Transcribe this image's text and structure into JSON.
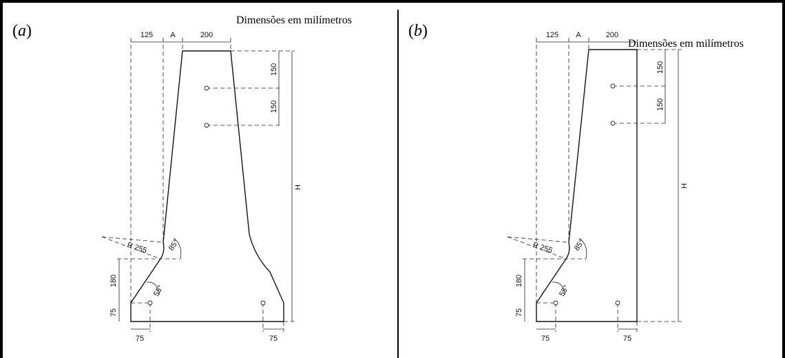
{
  "note": "Dimensões em milímetros",
  "panels": [
    {
      "label_open": "(",
      "label_letter": "a",
      "label_close": ")",
      "dims": {
        "top_left": "125",
        "top_a": "A",
        "top_width": "200",
        "hole_spacing_1": "150",
        "hole_spacing_2": "150",
        "height": "H",
        "radius": "R 255",
        "angle_upper": "85°",
        "angle_lower": "55°",
        "height_180": "180",
        "height_75": "75",
        "bottom_left_75": "75",
        "bottom_right_75": "75"
      }
    },
    {
      "label_open": "(",
      "label_letter": "b",
      "label_close": ")",
      "dims": {
        "top_left": "125",
        "top_a": "A",
        "top_width": "200",
        "hole_spacing_1": "150",
        "hole_spacing_2": "150",
        "height": "H",
        "radius": "R 255",
        "angle_upper": "85°",
        "angle_lower": "55°",
        "height_180": "180",
        "height_75": "75",
        "bottom_left_75": "75",
        "bottom_right_75": "75"
      }
    }
  ]
}
